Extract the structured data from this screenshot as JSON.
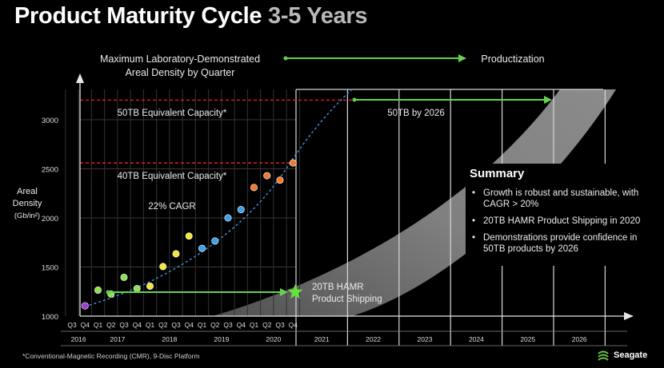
{
  "title": {
    "main": "Product Maturity Cycle",
    "accent": "3-5 Years"
  },
  "header": {
    "left_line1": "Maximum Laboratory-Demonstrated",
    "left_line2": "Areal Density by Quarter",
    "right": "Productization"
  },
  "summary": {
    "title": "Summary",
    "items": [
      "Growth is robust and sustainable, with CAGR > 20%",
      "20TB HAMR Product Shipping in 2020",
      "Demonstrations provide confidence in 50TB products by 2026"
    ]
  },
  "footnote": "*Conventional-Magnetic Recording (CMR), 9-Disc Platform",
  "logo": {
    "name": "Seagate",
    "color": "#6cc04a"
  },
  "colors": {
    "arrow_green": "#66d14f",
    "reference_red": "#e02020",
    "trend_blue": "#3d93d8",
    "band_gray": "#8c8c8c",
    "star_green": "#63e23a"
  },
  "chart_data": {
    "type": "scatter",
    "ylabel": "Areal Density (Gb/in²)",
    "ylabel_lines": [
      "Areal",
      "Density",
      "(Gb/in²)"
    ],
    "ylim": [
      1000,
      3300
    ],
    "yticks": [
      1000,
      1500,
      2000,
      2500,
      3000
    ],
    "quarter_labels": [
      "Q3",
      "Q4",
      "Q1",
      "Q2",
      "Q3",
      "Q4",
      "Q1",
      "Q2",
      "Q3",
      "Q4",
      "Q1",
      "Q2",
      "Q3",
      "Q4",
      "Q1",
      "Q2",
      "Q3",
      "Q4"
    ],
    "year_labels": [
      "2016",
      "2017",
      "2018",
      "2019",
      "2020",
      "2021",
      "2022",
      "2023",
      "2024",
      "2025",
      "2026"
    ],
    "grid": true,
    "points": [
      {
        "label": "Q4 2016",
        "y": 1105,
        "color": "#9b3dd6"
      },
      {
        "label": "Q1 2017",
        "y": 1265,
        "color": "#8ee04e"
      },
      {
        "label": "Q2 2017",
        "y": 1225,
        "color": "#8ee04e"
      },
      {
        "label": "Q3 2017",
        "y": 1395,
        "color": "#8ee04e"
      },
      {
        "label": "Q4 2017",
        "y": 1280,
        "color": "#8ee04e"
      },
      {
        "label": "Q1 2018",
        "y": 1305,
        "color": "#f5e53a"
      },
      {
        "label": "Q2 2018",
        "y": 1505,
        "color": "#f5e53a"
      },
      {
        "label": "Q3 2018",
        "y": 1635,
        "color": "#f5e53a"
      },
      {
        "label": "Q4 2018",
        "y": 1815,
        "color": "#f5e53a"
      },
      {
        "label": "Q1 2019",
        "y": 1690,
        "color": "#3aa0e8"
      },
      {
        "label": "Q2 2019",
        "y": 1765,
        "color": "#3aa0e8"
      },
      {
        "label": "Q3 2019",
        "y": 2000,
        "color": "#3aa0e8"
      },
      {
        "label": "Q4 2019",
        "y": 2085,
        "color": "#3aa0e8"
      },
      {
        "label": "Q1 2020",
        "y": 2310,
        "color": "#f07a2a"
      },
      {
        "label": "Q2 2020",
        "y": 2430,
        "color": "#f07a2a"
      },
      {
        "label": "Q3 2020",
        "y": 2385,
        "color": "#f07a2a"
      },
      {
        "label": "Q4 2020",
        "y": 2560,
        "color": "#f07a2a"
      }
    ],
    "reference_lines": [
      {
        "y": 3200,
        "label": "50TB Equivalent Capacity*"
      },
      {
        "y": 2560,
        "label": "40TB Equivalent Capacity*"
      }
    ],
    "annotations": {
      "cagr": "22% CAGR",
      "target": "50TB by 2026",
      "hamr_line1": "20TB HAMR",
      "hamr_line2": "Product Shipping"
    }
  }
}
